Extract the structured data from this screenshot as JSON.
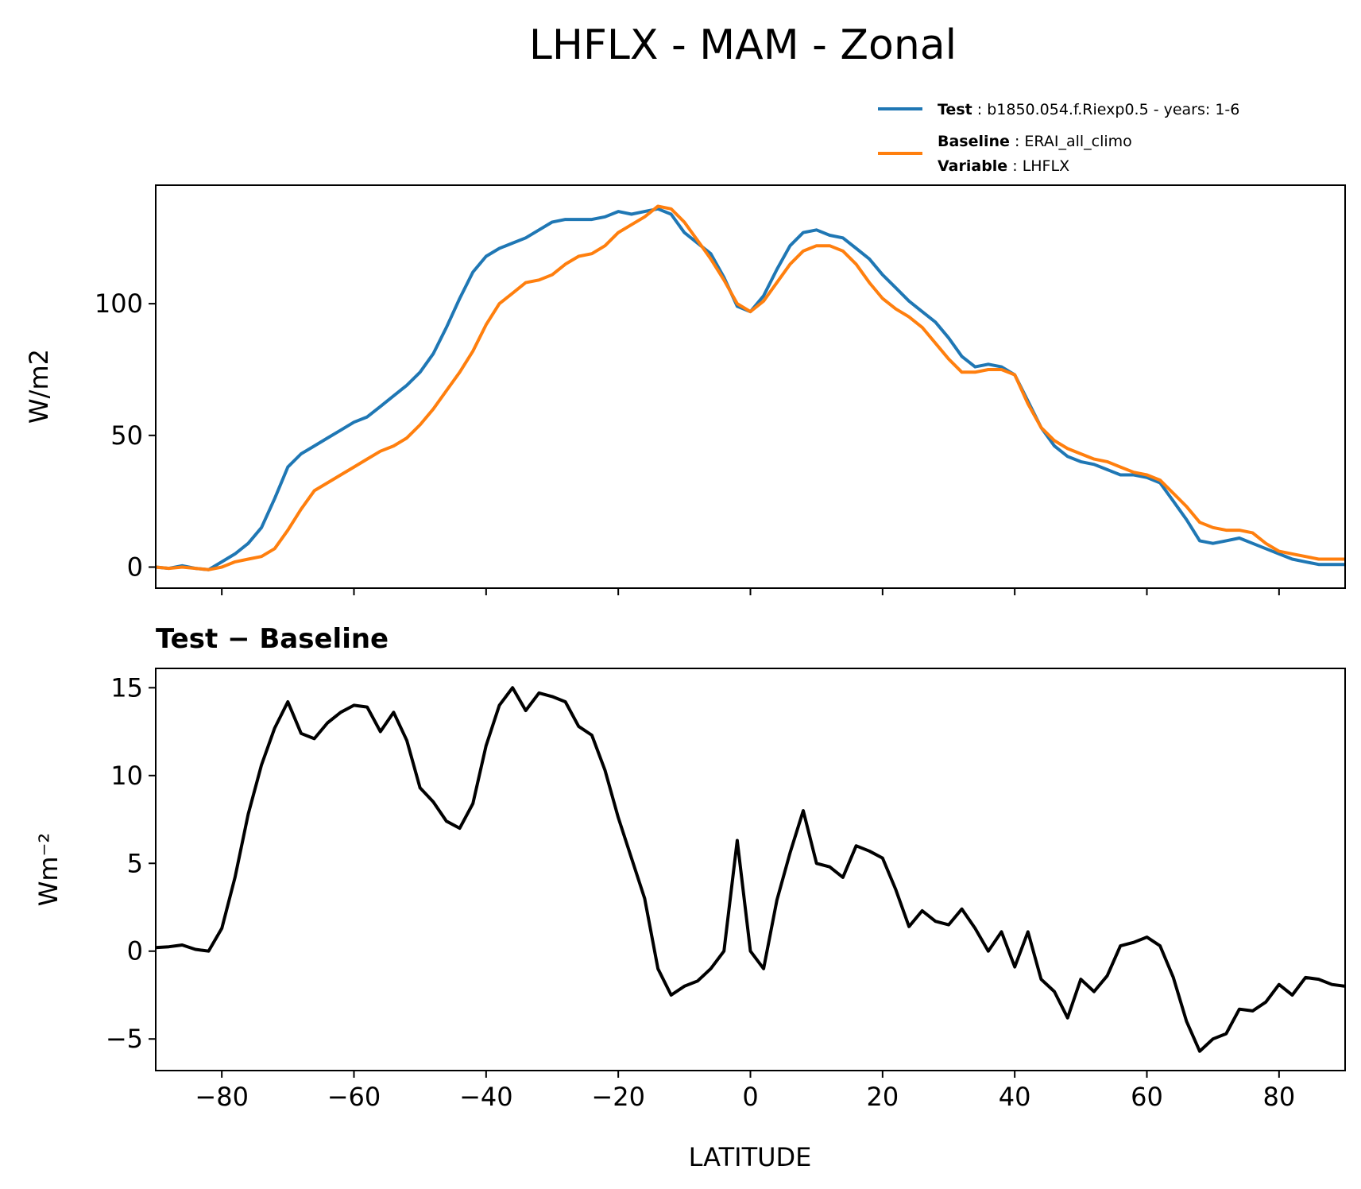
{
  "chart_data": {
    "figure_title": "LHFLX - MAM - Zonal",
    "legend": {
      "placement": "top-right, above upper panel",
      "entries": [
        {
          "key": "Test",
          "text": "b1850.054.f.Riexp0.5 - years: 1-6",
          "color": "#1f77b4"
        },
        {
          "key": "Baseline",
          "text": "ERAI_all_climo",
          "color": "#ff7f0e"
        },
        {
          "key": "Variable",
          "text": "LHFLX"
        }
      ]
    },
    "xlabel": "LATITUDE",
    "xlim": [
      -90,
      90
    ],
    "xticks": [
      -80,
      -60,
      -40,
      -20,
      0,
      20,
      40,
      60,
      80
    ],
    "xtick_labels": [
      "−80",
      "−60",
      "−40",
      "−20",
      "0",
      "20",
      "40",
      "60",
      "80"
    ],
    "top": {
      "type": "line",
      "ylabel": "W/m2",
      "ylim": [
        -8,
        145
      ],
      "yticks": [
        0,
        50,
        100
      ],
      "ytick_labels": [
        "0",
        "50",
        "100"
      ],
      "series": [
        {
          "name": "Test",
          "color": "#1f77b4",
          "x": [
            -90,
            -88,
            -86,
            -84,
            -82,
            -80,
            -78,
            -76,
            -74,
            -72,
            -70,
            -68,
            -66,
            -64,
            -62,
            -60,
            -58,
            -56,
            -54,
            -52,
            -50,
            -48,
            -46,
            -44,
            -42,
            -40,
            -38,
            -36,
            -34,
            -32,
            -30,
            -28,
            -26,
            -24,
            -22,
            -20,
            -18,
            -16,
            -14,
            -12,
            -10,
            -8,
            -6,
            -4,
            -2,
            0,
            2,
            4,
            6,
            8,
            10,
            12,
            14,
            16,
            18,
            20,
            22,
            24,
            26,
            28,
            30,
            32,
            34,
            36,
            38,
            40,
            42,
            44,
            46,
            48,
            50,
            52,
            54,
            56,
            58,
            60,
            62,
            64,
            66,
            68,
            70,
            72,
            74,
            76,
            78,
            80,
            82,
            84,
            86,
            88,
            90
          ],
          "values": [
            0,
            -0.5,
            0.5,
            -0.5,
            -1,
            2,
            5,
            9,
            15,
            26,
            38,
            43,
            46,
            49,
            52,
            55,
            57,
            61,
            65,
            69,
            74,
            81,
            91,
            102,
            112,
            118,
            121,
            123,
            125,
            128,
            131,
            132,
            132,
            132,
            133,
            135,
            134,
            135,
            136,
            134,
            127,
            123,
            119,
            110,
            99,
            97,
            103,
            113,
            122,
            127,
            128,
            126,
            125,
            121,
            117,
            111,
            106,
            101,
            97,
            93,
            87,
            80,
            76,
            77,
            76,
            73,
            63,
            53,
            46,
            42,
            40,
            39,
            37,
            35,
            35,
            34,
            32,
            25,
            18,
            10,
            9,
            10,
            11,
            9,
            7,
            5,
            3,
            2,
            1,
            1,
            1
          ]
        },
        {
          "name": "Baseline",
          "color": "#ff7f0e",
          "x": [
            -90,
            -88,
            -86,
            -84,
            -82,
            -80,
            -78,
            -76,
            -74,
            -72,
            -70,
            -68,
            -66,
            -64,
            -62,
            -60,
            -58,
            -56,
            -54,
            -52,
            -50,
            -48,
            -46,
            -44,
            -42,
            -40,
            -38,
            -36,
            -34,
            -32,
            -30,
            -28,
            -26,
            -24,
            -22,
            -20,
            -18,
            -16,
            -14,
            -12,
            -10,
            -8,
            -6,
            -4,
            -2,
            0,
            2,
            4,
            6,
            8,
            10,
            12,
            14,
            16,
            18,
            20,
            22,
            24,
            26,
            28,
            30,
            32,
            34,
            36,
            38,
            40,
            42,
            44,
            46,
            48,
            50,
            52,
            54,
            56,
            58,
            60,
            62,
            64,
            66,
            68,
            70,
            72,
            74,
            76,
            78,
            80,
            82,
            84,
            86,
            88,
            90
          ],
          "values": [
            0,
            -0.5,
            0,
            -0.5,
            -1,
            0,
            2,
            3,
            4,
            7,
            14,
            22,
            29,
            32,
            35,
            38,
            41,
            44,
            46,
            49,
            54,
            60,
            67,
            74,
            82,
            92,
            100,
            104,
            108,
            109,
            111,
            115,
            118,
            119,
            122,
            127,
            130,
            133,
            137,
            136,
            131,
            124,
            117,
            109,
            100,
            97,
            101,
            108,
            115,
            120,
            122,
            122,
            120,
            115,
            108,
            102,
            98,
            95,
            91,
            85,
            79,
            74,
            74,
            75,
            75,
            73,
            62,
            53,
            48,
            45,
            43,
            41,
            40,
            38,
            36,
            35,
            33,
            28,
            23,
            17,
            15,
            14,
            14,
            13,
            9,
            6,
            5,
            4,
            3,
            3,
            3
          ]
        }
      ]
    },
    "bottom": {
      "type": "line",
      "title": "Test − Baseline",
      "ylabel": "Wm⁻²",
      "ylim": [
        -6.8,
        16.1
      ],
      "yticks": [
        -5,
        0,
        5,
        10,
        15
      ],
      "ytick_labels": [
        "−5",
        "0",
        "5",
        "10",
        "15"
      ],
      "series": [
        {
          "name": "Test − Baseline",
          "color": "#000000",
          "x": [
            -90,
            -88,
            -86,
            -84,
            -82,
            -80,
            -78,
            -76,
            -74,
            -72,
            -70,
            -68,
            -66,
            -64,
            -62,
            -60,
            -58,
            -56,
            -54,
            -52,
            -50,
            -48,
            -46,
            -44,
            -42,
            -40,
            -38,
            -36,
            -34,
            -32,
            -30,
            -28,
            -26,
            -24,
            -22,
            -20,
            -18,
            -16,
            -14,
            -12,
            -10,
            -8,
            -6,
            -4,
            -2,
            0,
            2,
            4,
            6,
            8,
            10,
            12,
            14,
            16,
            18,
            20,
            22,
            24,
            26,
            28,
            30,
            32,
            34,
            36,
            38,
            40,
            42,
            44,
            46,
            48,
            50,
            52,
            54,
            56,
            58,
            60,
            62,
            64,
            66,
            68,
            70,
            72,
            74,
            76,
            78,
            80,
            82,
            84,
            86,
            88,
            90
          ],
          "values": [
            0.2,
            0.25,
            0.35,
            0.1,
            0,
            1.3,
            4.2,
            7.8,
            10.6,
            12.7,
            14.2,
            12.4,
            12.1,
            13.0,
            13.6,
            14.0,
            13.9,
            12.5,
            13.6,
            12.0,
            9.3,
            8.5,
            7.4,
            7.0,
            8.4,
            11.7,
            14.0,
            15.0,
            13.7,
            14.7,
            14.5,
            14.2,
            12.8,
            12.3,
            10.3,
            7.6,
            5.3,
            3.0,
            -1.0,
            -2.5,
            -2.0,
            -1.7,
            -1.0,
            0,
            6.3,
            0,
            -1.0,
            2.9,
            5.6,
            8.0,
            5.0,
            4.8,
            4.2,
            6.0,
            5.7,
            5.3,
            3.5,
            1.4,
            2.3,
            1.7,
            1.5,
            2.4,
            1.3,
            0.0,
            1.1,
            -0.9,
            1.1,
            -1.6,
            -2.3,
            -3.8,
            -1.6,
            -2.3,
            -1.4,
            0.3,
            0.5,
            0.8,
            0.3,
            -1.5,
            -4.0,
            -5.7,
            -5.0,
            -4.7,
            -3.3,
            -3.4,
            -2.9,
            -1.9,
            -2.5,
            -1.5,
            -1.6,
            -1.9,
            -2.0
          ]
        }
      ]
    }
  }
}
